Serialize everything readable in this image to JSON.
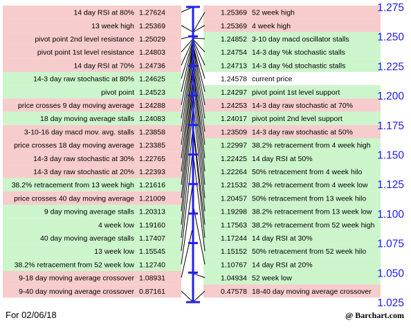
{
  "footer": {
    "date": "For 02/06/18",
    "source": "@ Barchart.com"
  },
  "colors": {
    "green": "#ccf5cc",
    "red": "#f7cccc",
    "white": "#ffffff",
    "axis": "#2020ee",
    "tick_text": "#1a1aff",
    "line": "#000000"
  },
  "chart_data": {
    "type": "table",
    "ylim": [
      1.025,
      1.275
    ],
    "y_ticks": [
      "1.275",
      "1.250",
      "1.225",
      "1.200",
      "1.175",
      "1.150",
      "1.125",
      "1.100",
      "1.075",
      "1.050",
      "1.025"
    ],
    "left": [
      {
        "label": "14 day RSI at 80%",
        "value": "1.27624",
        "color": "red"
      },
      {
        "label": "13 week high",
        "value": "1.25369",
        "color": "red"
      },
      {
        "label": "pivot point 2nd level resistance",
        "value": "1.25029",
        "color": "red"
      },
      {
        "label": "pivot point 1st level resistance",
        "value": "1.24803",
        "color": "red"
      },
      {
        "label": "14 day RSI at 70%",
        "value": "1.24736",
        "color": "red"
      },
      {
        "label": "14-3 day raw stochastic at 80%",
        "value": "1.24625",
        "color": "green"
      },
      {
        "label": "pivot point",
        "value": "1.24523",
        "color": "green"
      },
      {
        "label": "price crosses 9 day moving average",
        "value": "1.24288",
        "color": "red"
      },
      {
        "label": "18 day moving average stalls",
        "value": "1.24083",
        "color": "green"
      },
      {
        "label": "3-10-16 day macd mov. avg. stalls",
        "value": "1.23858",
        "color": "red"
      },
      {
        "label": "price crosses 18 day moving average",
        "value": "1.23385",
        "color": "red"
      },
      {
        "label": "14-3 day raw stochastic at 30%",
        "value": "1.22765",
        "color": "red"
      },
      {
        "label": "14-3 day raw stochastic at 20%",
        "value": "1.22393",
        "color": "red"
      },
      {
        "label": "38.2% retracement from 13 week high",
        "value": "1.21616",
        "color": "green"
      },
      {
        "label": "price crosses 40 day moving average",
        "value": "1.21009",
        "color": "red"
      },
      {
        "label": "9 day moving average stalls",
        "value": "1.20313",
        "color": "green"
      },
      {
        "label": "4 week low",
        "value": "1.19160",
        "color": "green"
      },
      {
        "label": "40 day moving average stalls",
        "value": "1.17407",
        "color": "green"
      },
      {
        "label": "13 week low",
        "value": "1.15545",
        "color": "green"
      },
      {
        "label": "38.2% retracement from 52 week low",
        "value": "1.12740",
        "color": "green"
      },
      {
        "label": "9-18 day moving average crossover",
        "value": "1.08931",
        "color": "red"
      },
      {
        "label": "9-40 day moving average crossover",
        "value": "0.87161",
        "color": "red"
      }
    ],
    "right": [
      {
        "label": "52 week high",
        "value": "1.25369",
        "color": "red"
      },
      {
        "label": "4 week high",
        "value": "1.25369",
        "color": "red"
      },
      {
        "label": "3-10 day macd oscillator stalls",
        "value": "1.24852",
        "color": "green"
      },
      {
        "label": "14-3 day %k stochastic stalls",
        "value": "1.24754",
        "color": "green"
      },
      {
        "label": "14-3 day %d stochastic stalls",
        "value": "1.24713",
        "color": "green"
      },
      {
        "label": "current price",
        "value": "1.24578",
        "color": "white"
      },
      {
        "label": "pivot point 1st level support",
        "value": "1.24297",
        "color": "green"
      },
      {
        "label": "14-3 day raw stochastic at 70%",
        "value": "1.24253",
        "color": "red"
      },
      {
        "label": "pivot point 2nd level support",
        "value": "1.24017",
        "color": "green"
      },
      {
        "label": "14-3 day raw stochastic at 50%",
        "value": "1.23509",
        "color": "red"
      },
      {
        "label": "38.2% retracement from 4 week high",
        "value": "1.22997",
        "color": "green"
      },
      {
        "label": "14 day RSI at 50%",
        "value": "1.22425",
        "color": "green"
      },
      {
        "label": "50% retracement from 4 week hilo",
        "value": "1.22264",
        "color": "green"
      },
      {
        "label": "38.2% retracement from 4 week low",
        "value": "1.21532",
        "color": "green"
      },
      {
        "label": "50% retracement from 13 week hilo",
        "value": "1.20457",
        "color": "green"
      },
      {
        "label": "38.2% retracement from 13 week low",
        "value": "1.19298",
        "color": "green"
      },
      {
        "label": "38.2% retracement from 52 week high",
        "value": "1.17563",
        "color": "green"
      },
      {
        "label": "14 day RSI at 30%",
        "value": "1.17244",
        "color": "green"
      },
      {
        "label": "50% retracement from 52 week hilo",
        "value": "1.15152",
        "color": "green"
      },
      {
        "label": "14 day RSI at 20%",
        "value": "1.10767",
        "color": "green"
      },
      {
        "label": "52 week low",
        "value": "1.04934",
        "color": "green"
      },
      {
        "label": "18-40 day moving average crossover",
        "value": "0.47578",
        "color": "red"
      }
    ]
  }
}
